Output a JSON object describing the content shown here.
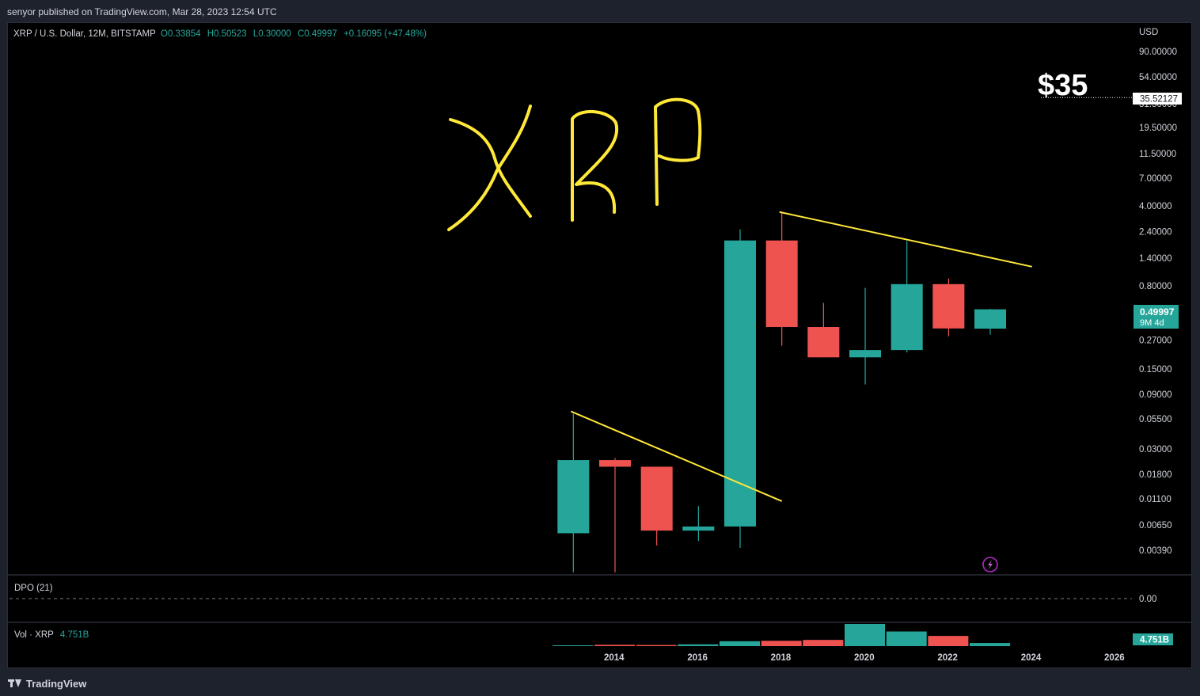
{
  "header": {
    "published_text": "senyor published on TradingView.com, Mar 28, 2023 12:54 UTC"
  },
  "legend": {
    "symbol_text": "XRP / U.S. Dollar, 12M, BITSTAMP",
    "open": "O0.33854",
    "high": "H0.50523",
    "low": "L0.30000",
    "close": "C0.49997",
    "change": "+0.16095 (+47.48%)"
  },
  "price_axis": {
    "currency": "USD",
    "scale": "log",
    "ticks": [
      "90.00000",
      "54.00000",
      "31.50000",
      "19.50000",
      "11.50000",
      "7.00000",
      "4.00000",
      "2.40000",
      "1.40000",
      "0.80000",
      "0.45000",
      "0.27000",
      "0.15000",
      "0.09000",
      "0.05500",
      "0.03000",
      "0.01800",
      "0.01100",
      "0.00650",
      "0.00390"
    ],
    "last_price_label": "0.49997",
    "countdown_label": "9M 4d",
    "marker_label": "35.52127"
  },
  "time_axis": {
    "labels": [
      "2014",
      "2016",
      "2018",
      "2020",
      "2022",
      "2024",
      "2026"
    ]
  },
  "annotations": {
    "handwritten_title": "XRP",
    "target_text": "$35",
    "target_price": 35.52127
  },
  "dpo": {
    "label": "DPO (21)",
    "value_label": "0.00"
  },
  "volume": {
    "label": "Vol · XRP",
    "value": "4.751B"
  },
  "footer": {
    "brand": "TradingView"
  },
  "colors": {
    "up": "#26a69a",
    "down": "#ef5350",
    "trendline": "#ffe838",
    "text": "#d1d4dc",
    "panel_bg": "#000000"
  },
  "chart_data": {
    "type": "candlestick",
    "symbol": "XRP / U.S. Dollar",
    "interval": "12M",
    "exchange": "BITSTAMP",
    "yscale": "log",
    "candles": [
      {
        "year": 2013,
        "open": 0.0055,
        "high": 0.061,
        "low": 0.0025,
        "close": 0.024
      },
      {
        "year": 2014,
        "open": 0.024,
        "high": 0.025,
        "low": 0.0025,
        "close": 0.021
      },
      {
        "year": 2015,
        "open": 0.021,
        "high": 0.021,
        "low": 0.0043,
        "close": 0.0058
      },
      {
        "year": 2016,
        "open": 0.0058,
        "high": 0.0095,
        "low": 0.0047,
        "close": 0.0063
      },
      {
        "year": 2017,
        "open": 0.0063,
        "high": 2.5,
        "low": 0.0041,
        "close": 2.0
      },
      {
        "year": 2018,
        "open": 2.0,
        "high": 3.55,
        "low": 0.24,
        "close": 0.35
      },
      {
        "year": 2019,
        "open": 0.35,
        "high": 0.57,
        "low": 0.19,
        "close": 0.19
      },
      {
        "year": 2020,
        "open": 0.19,
        "high": 0.77,
        "low": 0.11,
        "close": 0.22
      },
      {
        "year": 2021,
        "open": 0.22,
        "high": 1.98,
        "low": 0.21,
        "close": 0.83
      },
      {
        "year": 2022,
        "open": 0.83,
        "high": 0.93,
        "low": 0.29,
        "close": 0.34
      },
      {
        "year": 2023,
        "open": 0.33854,
        "high": 0.50523,
        "low": 0.3,
        "close": 0.49997
      }
    ],
    "volume_series": [
      {
        "year": 2013,
        "value": 0.03
      },
      {
        "year": 2014,
        "value": 0.06
      },
      {
        "year": 2015,
        "value": 0.05
      },
      {
        "year": 2016,
        "value": 0.08
      },
      {
        "year": 2017,
        "value": 0.22
      },
      {
        "year": 2018,
        "value": 0.24
      },
      {
        "year": 2019,
        "value": 0.28
      },
      {
        "year": 2020,
        "value": 1.0
      },
      {
        "year": 2021,
        "value": 0.66
      },
      {
        "year": 2022,
        "value": 0.46
      },
      {
        "year": 2023,
        "value": 0.14
      }
    ],
    "trendlines": [
      {
        "from": {
          "year": 2013,
          "price": 0.064
        },
        "to": {
          "year": 2018,
          "price": 0.0105
        }
      },
      {
        "from": {
          "year": 2018,
          "price": 3.55
        },
        "to": {
          "year": 2024,
          "price": 1.18
        }
      }
    ],
    "grid": false,
    "legend_position": "top-left"
  }
}
